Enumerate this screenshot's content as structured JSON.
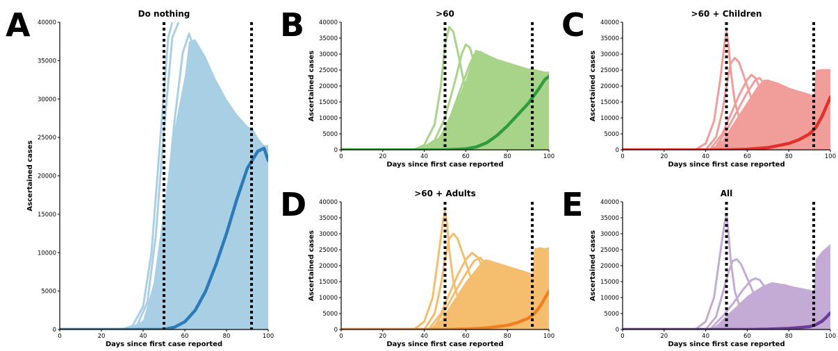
{
  "chart_data": [
    {
      "type": "line",
      "panel_letter": "A",
      "title": "Do nothing",
      "xlabel": "Days since first case reported",
      "ylabel": "Ascertained cases",
      "xlim": [
        0,
        100
      ],
      "ylim": [
        0,
        40000
      ],
      "x_ticks": [
        0,
        20,
        40,
        60,
        80,
        100
      ],
      "y_ticks": [
        0,
        5000,
        10000,
        15000,
        20000,
        25000,
        30000,
        35000,
        40000
      ],
      "vlines": [
        50,
        92
      ],
      "colors": {
        "light": "#a9cfe5",
        "fill": "#a9cfe5",
        "dark": "#2b7bba"
      },
      "band_upper": {
        "x": [
          32,
          40,
          45,
          50,
          55,
          60,
          62,
          65,
          70,
          75,
          80,
          85,
          90,
          93,
          95,
          98,
          100
        ],
        "y": [
          0,
          1200,
          6000,
          16000,
          26000,
          33000,
          37500,
          37800,
          35500,
          32500,
          30000,
          28000,
          26500,
          26000,
          25000,
          24000,
          24000
        ]
      },
      "peak_curves": [
        {
          "x": [
            30,
            35,
            40,
            44,
            48,
            52,
            54
          ],
          "y": [
            0,
            500,
            3000,
            10000,
            24000,
            38000,
            40000
          ]
        },
        {
          "x": [
            32,
            37,
            42,
            46,
            50,
            54,
            57
          ],
          "y": [
            0,
            500,
            3500,
            12000,
            26000,
            38000,
            40000
          ]
        },
        {
          "x": [
            35,
            40,
            45,
            50,
            55,
            59,
            62,
            64,
            66
          ],
          "y": [
            0,
            800,
            4500,
            13000,
            27000,
            36000,
            38500,
            37000,
            34000
          ]
        }
      ],
      "main_curve": {
        "x": [
          0,
          40,
          50,
          55,
          60,
          65,
          70,
          75,
          80,
          85,
          90,
          95,
          98,
          100
        ],
        "y": [
          0,
          0,
          0,
          300,
          1000,
          2500,
          5000,
          8500,
          12500,
          17000,
          21000,
          23200,
          23600,
          22000
        ]
      }
    },
    {
      "type": "line",
      "panel_letter": "B",
      "title": ">60",
      "xlabel": "Days since first case reported",
      "ylabel": "Ascertained cases",
      "xlim": [
        0,
        100
      ],
      "ylim": [
        0,
        40000
      ],
      "x_ticks": [
        0,
        20,
        40,
        60,
        80,
        100
      ],
      "y_ticks": [
        0,
        5000,
        10000,
        15000,
        20000,
        25000,
        30000,
        35000,
        40000
      ],
      "vlines": [
        50,
        92
      ],
      "colors": {
        "light": "#a8d48a",
        "fill": "#a8d48a",
        "dark": "#2e9c3f"
      },
      "band_upper": {
        "x": [
          40,
          45,
          50,
          55,
          60,
          63,
          65,
          67,
          70,
          75,
          80,
          85,
          90,
          92,
          95,
          98,
          100
        ],
        "y": [
          0,
          2000,
          7000,
          14000,
          22000,
          28000,
          31000,
          31000,
          30000,
          28500,
          27500,
          26500,
          25500,
          25500,
          25000,
          24500,
          24500
        ]
      },
      "peak_curves": [
        {
          "x": [
            35,
            40,
            45,
            48,
            50,
            52,
            54,
            57,
            60,
            65
          ],
          "y": [
            0,
            1500,
            8000,
            20000,
            33000,
            38500,
            37000,
            28000,
            18000,
            9000
          ]
        },
        {
          "x": [
            38,
            45,
            50,
            55,
            58,
            60,
            62,
            65,
            68
          ],
          "y": [
            0,
            3000,
            10000,
            22000,
            30000,
            33000,
            32000,
            25000,
            18000
          ]
        },
        {
          "x": [
            40,
            48,
            53,
            58,
            62,
            65,
            68,
            71
          ],
          "y": [
            0,
            4000,
            11000,
            20000,
            27000,
            31000,
            30000,
            25000
          ]
        }
      ],
      "main_curve": {
        "x": [
          0,
          40,
          50,
          60,
          65,
          70,
          75,
          80,
          85,
          90,
          95,
          98,
          100
        ],
        "y": [
          0,
          0,
          0,
          300,
          900,
          2200,
          4500,
          7500,
          11000,
          14500,
          19000,
          22000,
          23000
        ]
      }
    },
    {
      "type": "line",
      "panel_letter": "C",
      "title": ">60 + Children",
      "xlabel": "Days since first case reported",
      "ylabel": "Ascertained cases",
      "xlim": [
        0,
        100
      ],
      "ylim": [
        0,
        40000
      ],
      "x_ticks": [
        0,
        20,
        40,
        60,
        80,
        100
      ],
      "y_ticks": [
        0,
        5000,
        10000,
        15000,
        20000,
        25000,
        30000,
        35000,
        40000
      ],
      "vlines": [
        50,
        92
      ],
      "colors": {
        "light": "#f19d9a",
        "fill": "#f19d9a",
        "dark": "#e0302c"
      },
      "band_upper": {
        "x": [
          42,
          48,
          52,
          55,
          60,
          65,
          68,
          70,
          75,
          80,
          85,
          90,
          92,
          93,
          96,
          98,
          100
        ],
        "y": [
          0,
          3000,
          7000,
          10000,
          15000,
          20000,
          22000,
          22000,
          21000,
          19500,
          18500,
          17500,
          17000,
          25000,
          25300,
          25300,
          25300
        ]
      },
      "peak_curves": [
        {
          "x": [
            35,
            40,
            44,
            47,
            49,
            50,
            51,
            52,
            54,
            57,
            60
          ],
          "y": [
            0,
            2000,
            9000,
            22000,
            33000,
            37000,
            33000,
            25000,
            15000,
            8000,
            4000
          ]
        },
        {
          "x": [
            40,
            45,
            48,
            50,
            52,
            54,
            56,
            60,
            64
          ],
          "y": [
            0,
            4000,
            12000,
            20000,
            27000,
            28800,
            27500,
            20000,
            12000
          ]
        },
        {
          "x": [
            42,
            48,
            52,
            56,
            60,
            62,
            64,
            67
          ],
          "y": [
            0,
            5000,
            11000,
            17000,
            22000,
            23500,
            22500,
            18000
          ]
        },
        {
          "x": [
            44,
            50,
            55,
            60,
            64,
            66,
            69
          ],
          "y": [
            0,
            6000,
            12000,
            18000,
            22000,
            22500,
            20000
          ]
        }
      ],
      "main_curve": {
        "x": [
          0,
          50,
          60,
          70,
          80,
          85,
          90,
          93,
          96,
          98,
          100
        ],
        "y": [
          0,
          0,
          200,
          700,
          2000,
          3200,
          5000,
          7000,
          10500,
          13500,
          16500
        ]
      }
    },
    {
      "type": "line",
      "panel_letter": "D",
      "title": ">60 + Adults",
      "xlabel": "Days since first case reported",
      "ylabel": "Ascertained cases",
      "xlim": [
        0,
        100
      ],
      "ylim": [
        0,
        40000
      ],
      "x_ticks": [
        0,
        20,
        40,
        60,
        80,
        100
      ],
      "y_ticks": [
        0,
        5000,
        10000,
        15000,
        20000,
        25000,
        30000,
        35000,
        40000
      ],
      "vlines": [
        50,
        92
      ],
      "colors": {
        "light": "#f5bd6e",
        "fill": "#f5bd6e",
        "dark": "#f0801f"
      },
      "band_upper": {
        "x": [
          42,
          48,
          52,
          56,
          60,
          65,
          68,
          70,
          75,
          80,
          85,
          90,
          92,
          93,
          96,
          98,
          100
        ],
        "y": [
          0,
          3000,
          7000,
          11000,
          15000,
          19000,
          21500,
          22000,
          21000,
          20000,
          19000,
          18000,
          17500,
          25500,
          25800,
          25500,
          25800
        ]
      },
      "peak_curves": [
        {
          "x": [
            35,
            40,
            44,
            47,
            49,
            50,
            51,
            52,
            54,
            57,
            60
          ],
          "y": [
            0,
            2500,
            10000,
            24000,
            34000,
            37000,
            33000,
            25000,
            15000,
            8000,
            4000
          ]
        },
        {
          "x": [
            40,
            45,
            48,
            50,
            52,
            54,
            56,
            60,
            64
          ],
          "y": [
            0,
            5000,
            14000,
            22000,
            28500,
            30000,
            28500,
            21000,
            13000
          ]
        },
        {
          "x": [
            42,
            48,
            52,
            56,
            60,
            63,
            66,
            69
          ],
          "y": [
            0,
            5000,
            11000,
            17000,
            22000,
            24000,
            22500,
            18000
          ]
        },
        {
          "x": [
            44,
            50,
            55,
            60,
            64,
            67,
            70
          ],
          "y": [
            0,
            6000,
            12000,
            17500,
            21500,
            22500,
            20000
          ]
        }
      ],
      "main_curve": {
        "x": [
          0,
          50,
          60,
          70,
          80,
          85,
          90,
          93,
          96,
          98,
          100
        ],
        "y": [
          0,
          0,
          150,
          500,
          1300,
          2200,
          3500,
          5000,
          7500,
          9800,
          12000
        ]
      }
    },
    {
      "type": "line",
      "panel_letter": "E",
      "title": "All",
      "xlabel": "Days since first case reported",
      "ylabel": "Ascertained cases",
      "xlim": [
        0,
        100
      ],
      "ylim": [
        0,
        40000
      ],
      "x_ticks": [
        0,
        20,
        40,
        60,
        80,
        100
      ],
      "y_ticks": [
        0,
        5000,
        10000,
        15000,
        20000,
        25000,
        30000,
        35000,
        40000
      ],
      "vlines": [
        50,
        92
      ],
      "colors": {
        "light": "#c4abd6",
        "fill": "#c4abd6",
        "dark": "#6a3d9a"
      },
      "band_upper": {
        "x": [
          42,
          48,
          52,
          56,
          60,
          65,
          70,
          74,
          78,
          82,
          86,
          90,
          92,
          93,
          96,
          100
        ],
        "y": [
          0,
          2500,
          5000,
          8000,
          10500,
          12500,
          14000,
          14500,
          14200,
          13500,
          13000,
          12500,
          12000,
          22000,
          24500,
          26800
        ]
      },
      "peak_curves": [
        {
          "x": [
            35,
            40,
            44,
            47,
            49,
            50,
            51,
            52,
            54,
            57,
            60
          ],
          "y": [
            0,
            2500,
            10000,
            24000,
            33000,
            36000,
            30000,
            22000,
            12000,
            6000,
            3000
          ]
        },
        {
          "x": [
            40,
            45,
            48,
            51,
            53,
            55,
            57,
            60,
            64
          ],
          "y": [
            0,
            4000,
            11000,
            18000,
            21500,
            22000,
            20500,
            16000,
            10000
          ]
        },
        {
          "x": [
            42,
            48,
            53,
            58,
            62,
            64,
            66,
            70
          ],
          "y": [
            0,
            4000,
            8000,
            12500,
            15500,
            16000,
            15500,
            12000
          ]
        },
        {
          "x": [
            44,
            50,
            56,
            62,
            68,
            72,
            75,
            78
          ],
          "y": [
            0,
            4000,
            7500,
            11000,
            13500,
            14500,
            14200,
            12500
          ]
        }
      ],
      "main_curve": {
        "x": [
          0,
          60,
          70,
          80,
          85,
          90,
          93,
          96,
          98,
          100
        ],
        "y": [
          0,
          0,
          100,
          350,
          600,
          900,
          1500,
          2600,
          3800,
          5200
        ]
      }
    }
  ]
}
